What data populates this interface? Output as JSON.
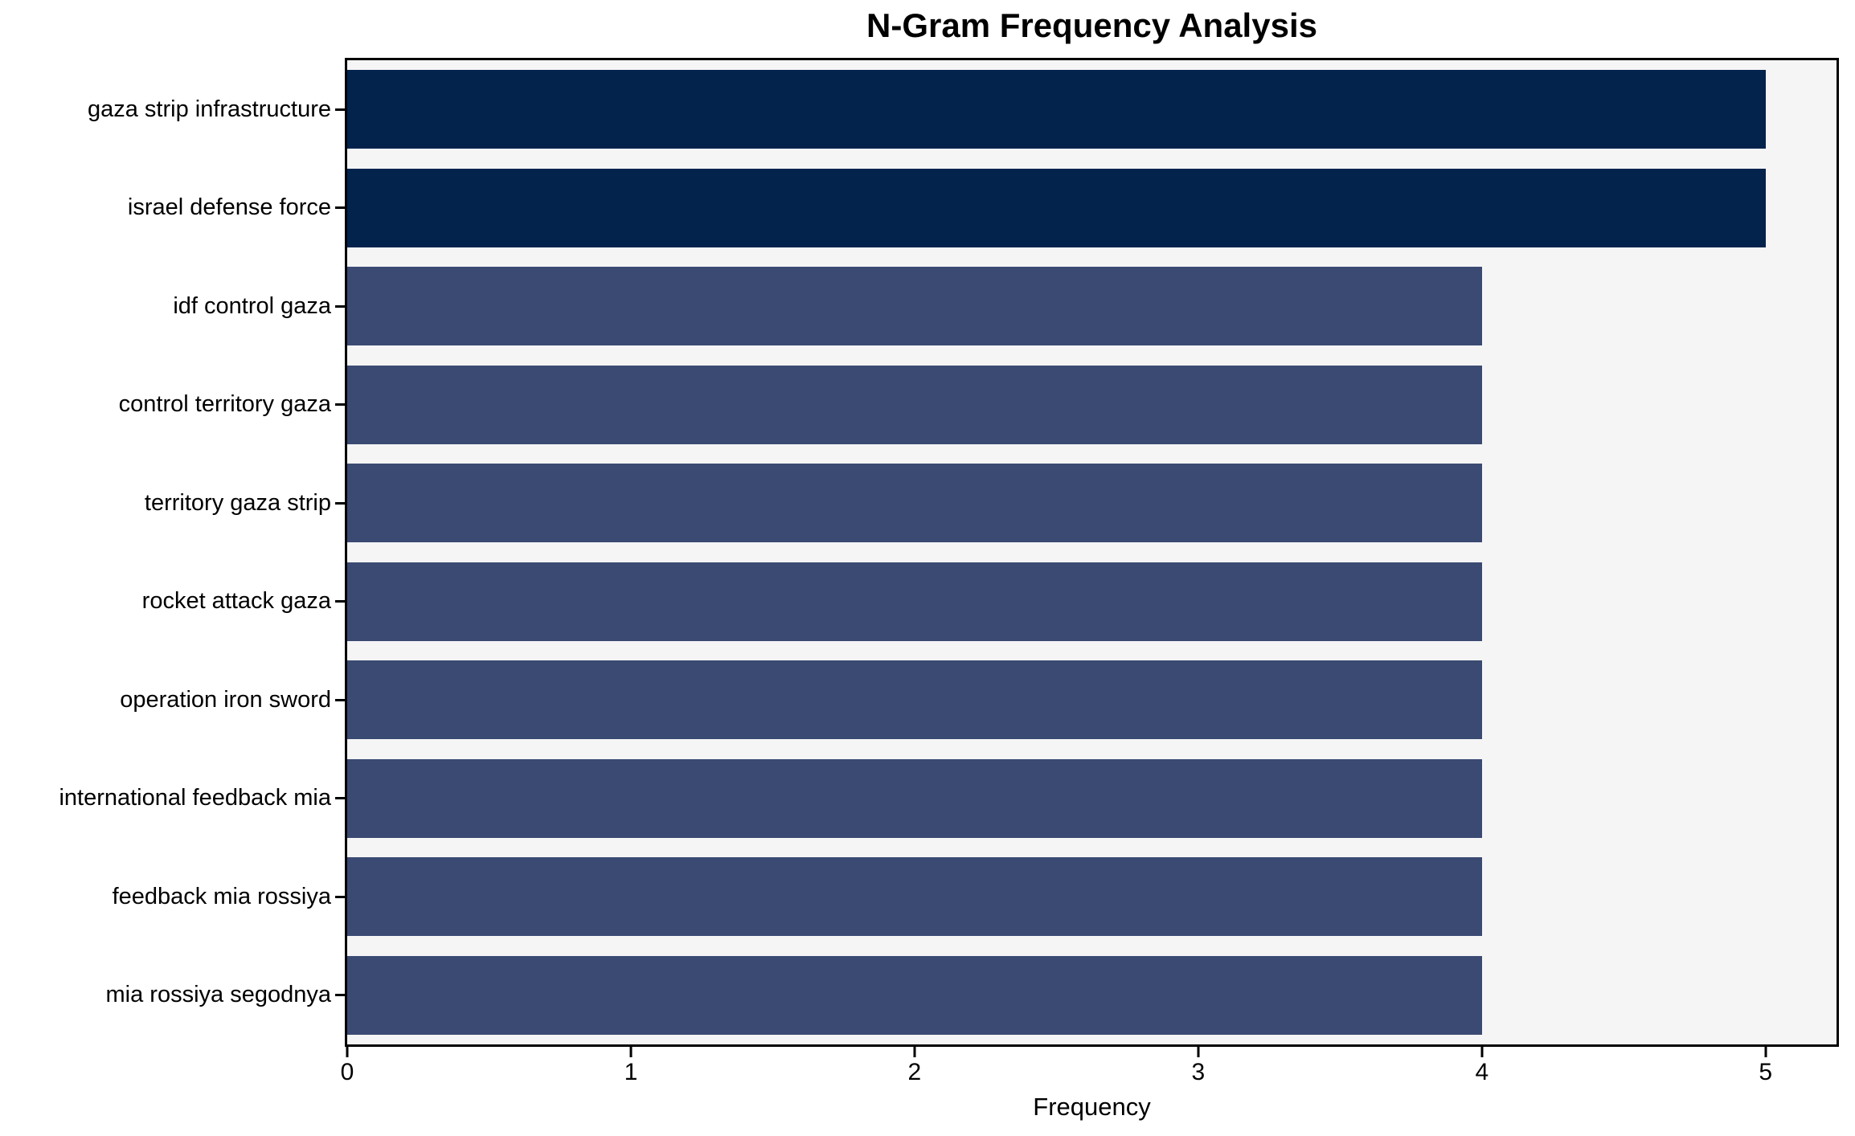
{
  "chart_data": {
    "type": "bar",
    "orientation": "horizontal",
    "title": "N-Gram Frequency Analysis",
    "xlabel": "Frequency",
    "ylabel": "",
    "categories": [
      "gaza strip infrastructure",
      "israel defense force",
      "idf control gaza",
      "control territory gaza",
      "territory gaza strip",
      "rocket attack gaza",
      "operation iron sword",
      "international feedback mia",
      "feedback mia rossiya",
      "mia rossiya segodnya"
    ],
    "values": [
      5,
      5,
      4,
      4,
      4,
      4,
      4,
      4,
      4,
      4
    ],
    "bar_colors": [
      "#03234d",
      "#03234d",
      "#3a4a72",
      "#3a4a72",
      "#3a4a72",
      "#3a4a72",
      "#3a4a72",
      "#3a4a72",
      "#3a4a72",
      "#3a4a72"
    ],
    "xticks": [
      0,
      1,
      2,
      3,
      4,
      5
    ],
    "xlim": [
      0,
      5.25
    ],
    "bar_height_fraction": 0.8,
    "grid": false,
    "legend_position": "none",
    "plot_background": "#f5f5f6",
    "figure_background": "#ffffff",
    "spine_color": "#000000",
    "text_color": "#000000"
  }
}
